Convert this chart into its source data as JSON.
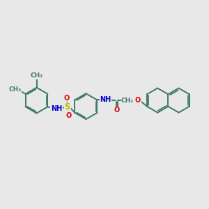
{
  "bg_color": "#e8e8e8",
  "bond_color": "#3d7a65",
  "bond_width": 1.4,
  "dbo": 0.055,
  "figsize": [
    3.0,
    3.0
  ],
  "dpi": 100,
  "atom_colors": {
    "N": "#0000cc",
    "O": "#dd0000",
    "S": "#bbbb00",
    "C": "#3d7a65"
  },
  "font_size": 7.0,
  "xlim": [
    0,
    10
  ],
  "ylim": [
    1.5,
    8.5
  ]
}
